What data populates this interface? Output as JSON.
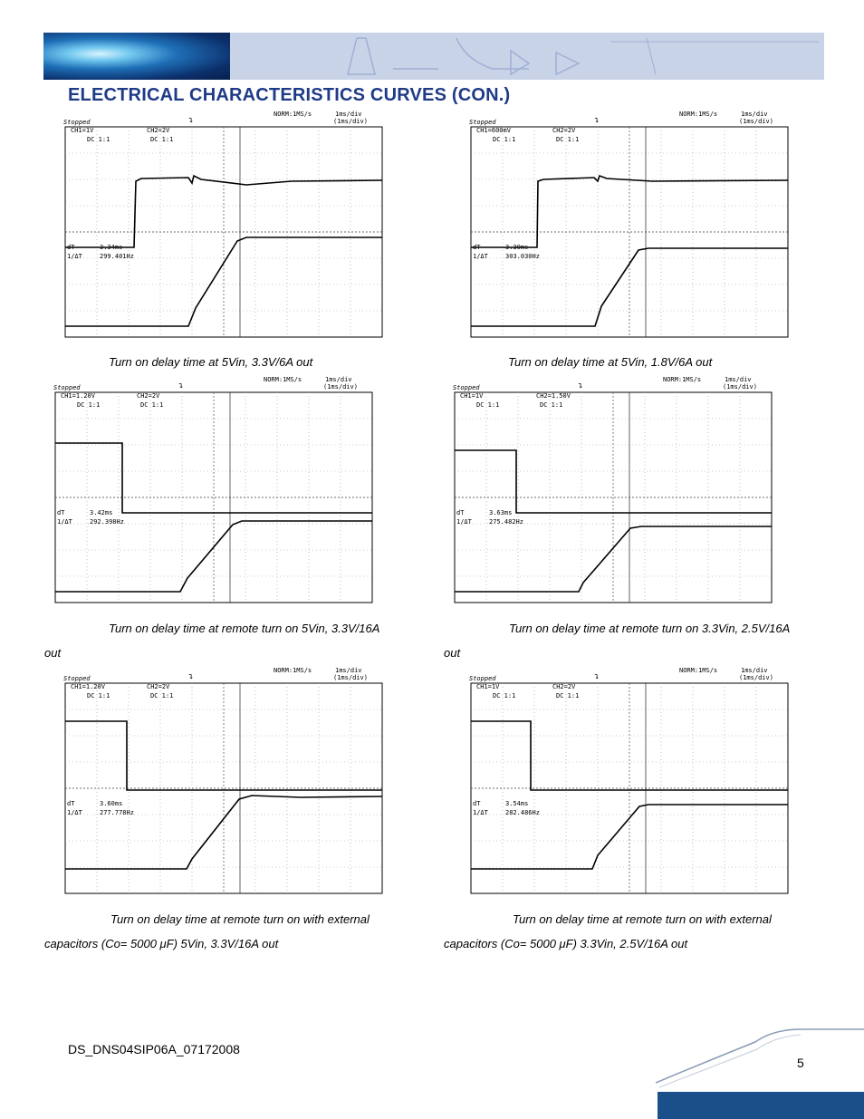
{
  "header": {
    "title": "ELECTRICAL CHARACTERISTICS CURVES (CON.)"
  },
  "scopes": [
    {
      "status": "Stopped",
      "timebase": "NORM:1MS/s",
      "div": "1ms/div",
      "div2": "(1ms/div)",
      "ch1": "CH1=1V",
      "ch1dc": "DC  1:1",
      "ch2": "CH2=2V",
      "ch2dc": "DC  1:1",
      "dt_label": "dT",
      "dt": "3.34ms",
      "inv_label": "1/ΔT",
      "inv": "299.401Hz",
      "caption": "Turn on delay time at 5Vin, 3.3V/6A out",
      "caption2": ""
    },
    {
      "status": "Stopped",
      "timebase": "NORM:1MS/s",
      "div": "1ms/div",
      "div2": "(1ms/div)",
      "ch1": "CH1=600mV",
      "ch1dc": "DC  1:1",
      "ch2": "CH2=2V",
      "ch2dc": "DC  1:1",
      "dt_label": "dT",
      "dt": "3.30ms",
      "inv_label": "1/ΔT",
      "inv": "303.030Hz",
      "caption": "Turn on delay time at 5Vin, 1.8V/6A out",
      "caption2": ""
    },
    {
      "status": "Stopped",
      "timebase": "NORM:1MS/s",
      "div": "1ms/div",
      "div2": "(1ms/div)",
      "ch1": "CH1=1.20V",
      "ch1dc": "DC  1:1",
      "ch2": "CH2=2V",
      "ch2dc": "DC  1:1",
      "dt_label": "dT",
      "dt": "3.42ms",
      "inv_label": "1/ΔT",
      "inv": "292.398Hz",
      "caption": "Turn on delay time at remote turn on 5Vin, 3.3V/16A",
      "caption2": "out"
    },
    {
      "status": "Stopped",
      "timebase": "NORM:1MS/s",
      "div": "1ms/div",
      "div2": "(1ms/div)",
      "ch1": "CH1=1V",
      "ch1dc": "DC  1:1",
      "ch2": "CH2=1.50V",
      "ch2dc": "DC  1:1",
      "dt_label": "dT",
      "dt": "3.63ms",
      "inv_label": "1/ΔT",
      "inv": "275.482Hz",
      "caption": "Turn on delay time at remote turn on 3.3Vin, 2.5V/16A",
      "caption2": "out"
    },
    {
      "status": "Stopped",
      "timebase": "NORM:1MS/s",
      "div": "1ms/div",
      "div2": "(1ms/div)",
      "ch1": "CH1=1.20V",
      "ch1dc": "DC  1:1",
      "ch2": "CH2=2V",
      "ch2dc": "DC  1:1",
      "dt_label": "dT",
      "dt": "3.60ms",
      "inv_label": "1/ΔT",
      "inv": "277.778Hz",
      "caption": "Turn on delay time at remote turn on with external",
      "caption2": "capacitors (Co= 5000 μF) 5Vin, 3.3V/16A out"
    },
    {
      "status": "Stopped",
      "timebase": "NORM:1MS/s",
      "div": "1ms/div",
      "div2": "(1ms/div)",
      "ch1": "CH1=1V",
      "ch1dc": "DC  1:1",
      "ch2": "CH2=2V",
      "ch2dc": "DC  1:1",
      "dt_label": "dT",
      "dt": "3.54ms",
      "inv_label": "1/ΔT",
      "inv": "282.486Hz",
      "caption": "Turn on delay time at remote turn on with external",
      "caption2": "capacitors (Co= 5000 μF) 3.3Vin, 2.5V/16A out"
    }
  ],
  "footer": {
    "doc_id": "DS_DNS04SIP06A_07172008",
    "page": "5"
  },
  "colors": {
    "title": "#1f3b87",
    "banner": "#c9d3e8",
    "corner": "#1a4f8a"
  }
}
